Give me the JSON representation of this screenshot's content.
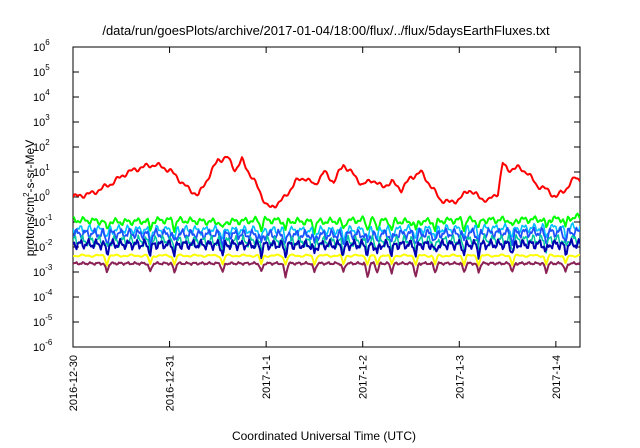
{
  "chart_data": {
    "type": "line",
    "title": "/data/run/goesPlots/archive/2017-01-04/18:00/flux/../flux/5daysEarthFluxes.txt",
    "xlabel": "Coordinated Universal Time (UTC)",
    "ylabel": "protons/cm²-s-sr-MeV",
    "ylabel_parts": {
      "main": "protons/cm",
      "sup": "2",
      "rest": "-s-sr-MeV"
    },
    "y_scale": "log",
    "ylim": [
      1e-06,
      1000000.0
    ],
    "y_ticks": [
      {
        "base": "10",
        "exp": "-6",
        "value": 1e-06
      },
      {
        "base": "10",
        "exp": "-5",
        "value": 1e-05
      },
      {
        "base": "10",
        "exp": "-4",
        "value": 0.0001
      },
      {
        "base": "10",
        "exp": "-3",
        "value": 0.001
      },
      {
        "base": "10",
        "exp": "-2",
        "value": 0.01
      },
      {
        "base": "10",
        "exp": "-1",
        "value": 0.1
      },
      {
        "base": "10",
        "exp": "0",
        "value": 1
      },
      {
        "base": "10",
        "exp": "1",
        "value": 10
      },
      {
        "base": "10",
        "exp": "2",
        "value": 100
      },
      {
        "base": "10",
        "exp": "3",
        "value": 1000
      },
      {
        "base": "10",
        "exp": "4",
        "value": 10000
      },
      {
        "base": "10",
        "exp": "5",
        "value": 100000
      },
      {
        "base": "10",
        "exp": "6",
        "value": 1000000
      }
    ],
    "xlim": [
      0,
      5.25
    ],
    "x_ticks": [
      {
        "label": "2016-12-30",
        "value": 0
      },
      {
        "label": "2016-12-31",
        "value": 1
      },
      {
        "label": "2017-1-1",
        "value": 2
      },
      {
        "label": "2017-1-2",
        "value": 3
      },
      {
        "label": "2017-1-3",
        "value": 4
      },
      {
        "label": "2017-1-4",
        "value": 5
      }
    ],
    "grid": false,
    "legend": "none",
    "series": [
      {
        "color": "#ff0000",
        "base": [
          [
            0,
            1.0
          ],
          [
            0.2,
            1.4
          ],
          [
            0.4,
            3.5
          ],
          [
            0.55,
            9
          ],
          [
            0.7,
            15
          ],
          [
            0.85,
            20
          ],
          [
            1.0,
            12
          ],
          [
            1.1,
            5
          ],
          [
            1.2,
            2
          ],
          [
            1.3,
            1.2
          ],
          [
            1.4,
            6
          ],
          [
            1.5,
            30
          ],
          [
            1.6,
            38
          ],
          [
            1.68,
            12
          ],
          [
            1.75,
            30
          ],
          [
            1.82,
            10
          ],
          [
            1.9,
            3
          ],
          [
            2.0,
            0.5
          ],
          [
            2.05,
            0.35
          ],
          [
            2.1,
            0.5
          ],
          [
            2.2,
            1.0
          ],
          [
            2.3,
            4
          ],
          [
            2.4,
            6
          ],
          [
            2.5,
            3
          ],
          [
            2.6,
            10
          ],
          [
            2.7,
            4
          ],
          [
            2.8,
            20
          ],
          [
            2.9,
            8
          ],
          [
            3.0,
            3
          ],
          [
            3.1,
            5
          ],
          [
            3.2,
            2.5
          ],
          [
            3.3,
            4
          ],
          [
            3.4,
            2
          ],
          [
            3.5,
            6
          ],
          [
            3.6,
            10
          ],
          [
            3.7,
            3
          ],
          [
            3.8,
            0.8
          ],
          [
            3.9,
            0.6
          ],
          [
            4.0,
            0.8
          ],
          [
            4.1,
            2
          ],
          [
            4.2,
            1.0
          ],
          [
            4.3,
            0.7
          ],
          [
            4.4,
            1.5
          ],
          [
            4.45,
            22
          ],
          [
            4.5,
            12
          ],
          [
            4.6,
            15
          ],
          [
            4.7,
            10
          ],
          [
            4.8,
            3
          ],
          [
            4.9,
            2
          ],
          [
            5.0,
            1.0
          ],
          [
            5.1,
            2
          ],
          [
            5.2,
            6
          ],
          [
            5.25,
            5
          ]
        ],
        "amp": 0.12,
        "freq": 7.0,
        "width": 2.0
      },
      {
        "color": "#00ff00",
        "base": [
          [
            0,
            0.12
          ],
          [
            0.5,
            0.1
          ],
          [
            1.0,
            0.12
          ],
          [
            1.5,
            0.1
          ],
          [
            2.0,
            0.12
          ],
          [
            2.5,
            0.1
          ],
          [
            3.0,
            0.12
          ],
          [
            3.5,
            0.1
          ],
          [
            4.0,
            0.12
          ],
          [
            4.5,
            0.12
          ],
          [
            5.0,
            0.13
          ],
          [
            5.25,
            0.16
          ]
        ],
        "amp": 0.15,
        "freq": 9.0,
        "width": 2.0
      },
      {
        "color": "#00bfff",
        "base": [
          [
            0,
            0.05
          ],
          [
            2.5,
            0.045
          ],
          [
            5.25,
            0.06
          ]
        ],
        "amp": 0.2,
        "freq": 10.0,
        "width": 1.6
      },
      {
        "color": "#1e50ff",
        "base": [
          [
            0,
            0.035
          ],
          [
            2.5,
            0.03
          ],
          [
            5.25,
            0.04
          ]
        ],
        "amp": 0.22,
        "freq": 11.0,
        "width": 1.8
      },
      {
        "color": "#00c8a0",
        "base": [
          [
            0,
            0.018
          ],
          [
            2.5,
            0.016
          ],
          [
            5.25,
            0.02
          ]
        ],
        "amp": 0.25,
        "freq": 12.0,
        "width": 1.5
      },
      {
        "color": "#0000b0",
        "base": [
          [
            0,
            0.013
          ],
          [
            2.5,
            0.012
          ],
          [
            5.25,
            0.013
          ]
        ],
        "amp": 0.22,
        "freq": 12.0,
        "width": 2.0
      },
      {
        "color": "#ffff00",
        "base": [
          [
            0,
            0.0045
          ],
          [
            2.5,
            0.0045
          ],
          [
            5.25,
            0.0045
          ]
        ],
        "amp": 0.05,
        "freq": 6.0,
        "width": 2.0
      },
      {
        "color": "#8b2255",
        "base": [
          [
            0,
            0.0022
          ],
          [
            2.5,
            0.0022
          ],
          [
            5.25,
            0.0022
          ]
        ],
        "amp": 0.06,
        "freq": 13.0,
        "width": 2.0
      }
    ],
    "dips": [
      0.35,
      0.8,
      1.05,
      1.55,
      1.95,
      2.2,
      2.5,
      2.8,
      3.05,
      3.15,
      3.3,
      3.55,
      3.75,
      4.05,
      4.2,
      4.55,
      4.9,
      5.1
    ]
  }
}
